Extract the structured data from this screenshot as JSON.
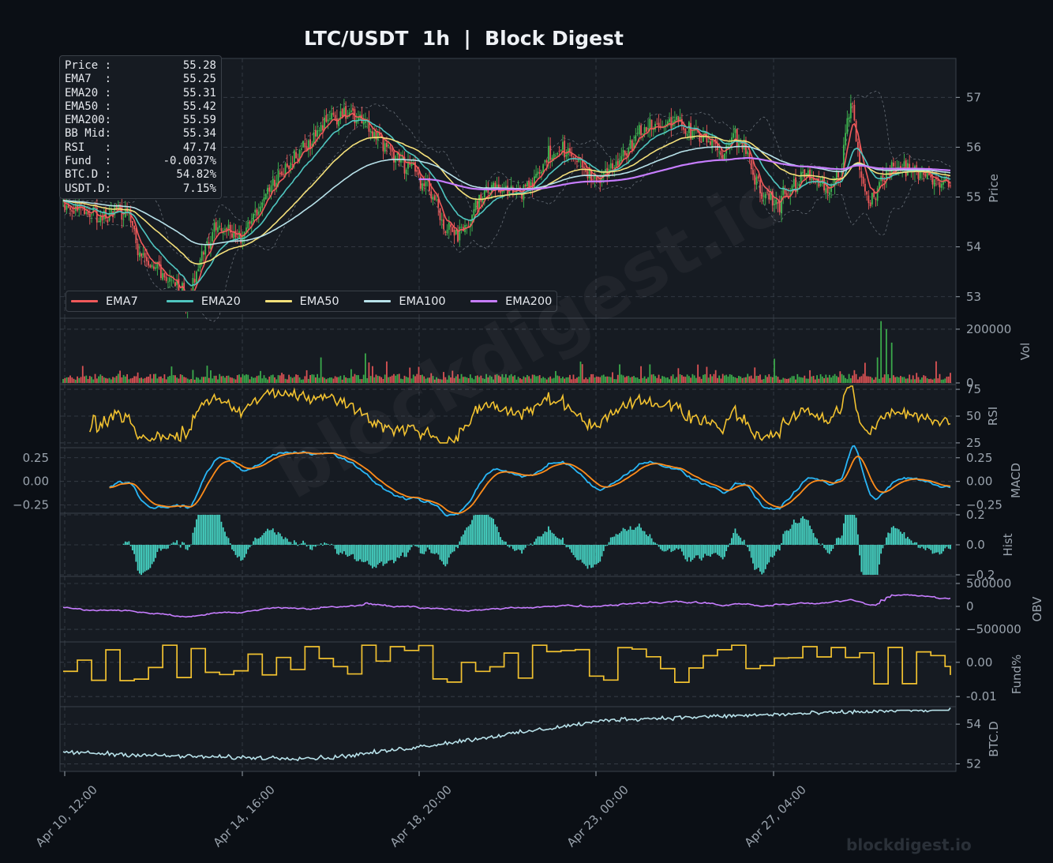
{
  "title": "LTC/USDT  1h  |  Block Digest",
  "watermark": "blockdigest.io",
  "infobox": [
    {
      "label": "Price :",
      "value": "55.28"
    },
    {
      "label": "EMA7  :",
      "value": "55.25"
    },
    {
      "label": "EMA20 :",
      "value": "55.31"
    },
    {
      "label": "EMA50 :",
      "value": "55.42"
    },
    {
      "label": "EMA200:",
      "value": "55.59"
    },
    {
      "label": "BB Mid:",
      "value": "55.34"
    },
    {
      "label": "RSI   :",
      "value": "47.74"
    },
    {
      "label": "Fund  :",
      "value": "-0.0037%"
    },
    {
      "label": "BTC.D :",
      "value": "54.82%"
    },
    {
      "label": "USDT.D:",
      "value": "7.15%"
    }
  ],
  "legend": [
    {
      "name": "EMA7",
      "color": "#f0595a"
    },
    {
      "name": "EMA20",
      "color": "#4fc6c0"
    },
    {
      "name": "EMA50",
      "color": "#f4e07a"
    },
    {
      "name": "EMA100",
      "color": "#b8e2ea"
    },
    {
      "name": "EMA200",
      "color": "#c77dff"
    }
  ],
  "colors": {
    "background": "#0b0f15",
    "panel": "#161b22",
    "grid": "#3a414b",
    "up": "#3fb950",
    "down": "#f0595a",
    "rsi": "#f2c230",
    "macd": "#29b6f6",
    "signal": "#ff8c1a",
    "hist": "#46d4c4",
    "obv": "#c77dff",
    "funding": "#f2c230",
    "btcd": "#b8e2ea",
    "tick": "#9aa3ad"
  },
  "chart_data": {
    "type": "multi-panel financial chart",
    "x_tick_labels": [
      "Apr 10, 12:00",
      "Apr 14, 16:00",
      "Apr 18, 20:00",
      "Apr 23, 00:00",
      "Apr 27, 04:00"
    ],
    "n_candles": 500,
    "panels": [
      {
        "id": "price",
        "ylabel": "Price",
        "ylim": [
          52.6,
          57.75
        ],
        "yticks": [
          53,
          54,
          55,
          56,
          57
        ],
        "close_profile": [
          [
            0,
            54.9
          ],
          [
            25,
            54.6
          ],
          [
            40,
            54.8
          ],
          [
            50,
            53.8
          ],
          [
            70,
            53.3
          ],
          [
            80,
            52.9
          ],
          [
            90,
            54.0
          ],
          [
            100,
            54.4
          ],
          [
            115,
            54.2
          ],
          [
            130,
            55.0
          ],
          [
            150,
            55.8
          ],
          [
            170,
            56.5
          ],
          [
            185,
            56.7
          ],
          [
            200,
            56.3
          ],
          [
            215,
            55.8
          ],
          [
            235,
            55.3
          ],
          [
            245,
            54.4
          ],
          [
            255,
            54.2
          ],
          [
            270,
            55.1
          ],
          [
            285,
            55.2
          ],
          [
            295,
            55.1
          ],
          [
            310,
            55.7
          ],
          [
            320,
            56.0
          ],
          [
            335,
            55.5
          ],
          [
            345,
            55.3
          ],
          [
            360,
            55.8
          ],
          [
            370,
            56.3
          ],
          [
            385,
            56.5
          ],
          [
            400,
            56.4
          ],
          [
            415,
            56.1
          ],
          [
            425,
            55.9
          ],
          [
            430,
            56.2
          ],
          [
            437,
            56.0
          ],
          [
            445,
            55.3
          ],
          [
            460,
            54.9
          ],
          [
            470,
            55.2
          ],
          [
            480,
            55.5
          ],
          [
            490,
            55.1
          ],
          [
            500,
            55.5
          ],
          [
            503,
            56.6
          ],
          [
            507,
            57.0
          ],
          [
            512,
            55.5
          ],
          [
            517,
            54.9
          ],
          [
            530,
            55.5
          ],
          [
            545,
            55.6
          ],
          [
            560,
            55.3
          ],
          [
            570,
            55.28
          ]
        ],
        "ema_periods": [
          7,
          20,
          50,
          100,
          200
        ],
        "bollinger": {
          "period": 20,
          "std": 2
        }
      },
      {
        "id": "volume",
        "ylabel": "Vol",
        "ylim": [
          0,
          235000
        ],
        "yticks": [
          0,
          200000
        ]
      },
      {
        "id": "rsi",
        "ylabel": "RSI",
        "ylim": [
          22,
          78
        ],
        "yticks": [
          25,
          50,
          75
        ],
        "last": 47.74
      },
      {
        "id": "macd",
        "ylabel": "MACD",
        "ylim": [
          -0.32,
          0.34
        ],
        "yticks": [
          -0.25,
          0.0,
          0.25
        ],
        "series": [
          "MACD",
          "Signal"
        ]
      },
      {
        "id": "hist",
        "ylabel": "Hist",
        "ylim": [
          -0.2,
          0.2
        ],
        "yticks": [
          -0.2,
          0.0,
          0.2
        ]
      },
      {
        "id": "obv",
        "ylabel": "OBV",
        "ylim": [
          -740000,
          620000
        ],
        "yticks": [
          -500000,
          0,
          500000
        ]
      },
      {
        "id": "funding",
        "ylabel": "Fund%",
        "ylim": [
          -0.0125,
          0.0055
        ],
        "yticks": [
          -0.01,
          0.0
        ],
        "last": -0.0037
      },
      {
        "id": "btcd",
        "ylabel": "BTC.D",
        "ylim": [
          51.7,
          54.8
        ],
        "yticks": [
          52,
          54
        ],
        "last": 54.82
      }
    ]
  }
}
